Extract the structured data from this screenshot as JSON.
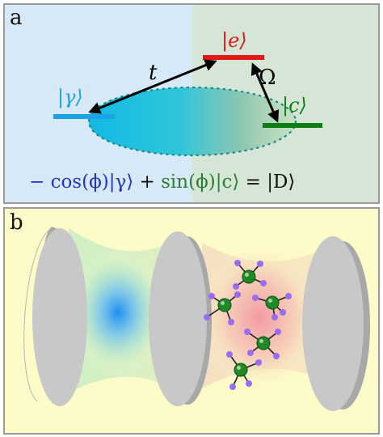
{
  "panel_a": {
    "letter": "a",
    "state_gamma": "|γ⟩",
    "state_e": "|e⟩",
    "state_c": "|c⟩",
    "coupling_t": "t",
    "coupling_omega": "Ω",
    "equation": {
      "part1": "− cos(ϕ)|γ⟩",
      "part2": " + ",
      "part3": "sin(ϕ)|c⟩",
      "part4": " = |D⟩"
    },
    "colors": {
      "left_bg": "#d7e8f7",
      "right_bg": "#d6e6d6",
      "gamma": "#1aa3e8",
      "e": "#e01818",
      "c": "#0d7f12",
      "eq_blue": "#2233cc",
      "eq_green": "#2e7d32"
    }
  },
  "panel_b": {
    "letter": "b",
    "colors": {
      "bg": "#fdfbc8",
      "mirror": "#c8c8c8",
      "mirror_dark": "#a9a9a9",
      "molecule_center": "#1e8a25",
      "molecule_h": "#9a6cf2",
      "glow_blue": "#1d8ff0",
      "glow_pink": "#f2a0a8"
    }
  }
}
